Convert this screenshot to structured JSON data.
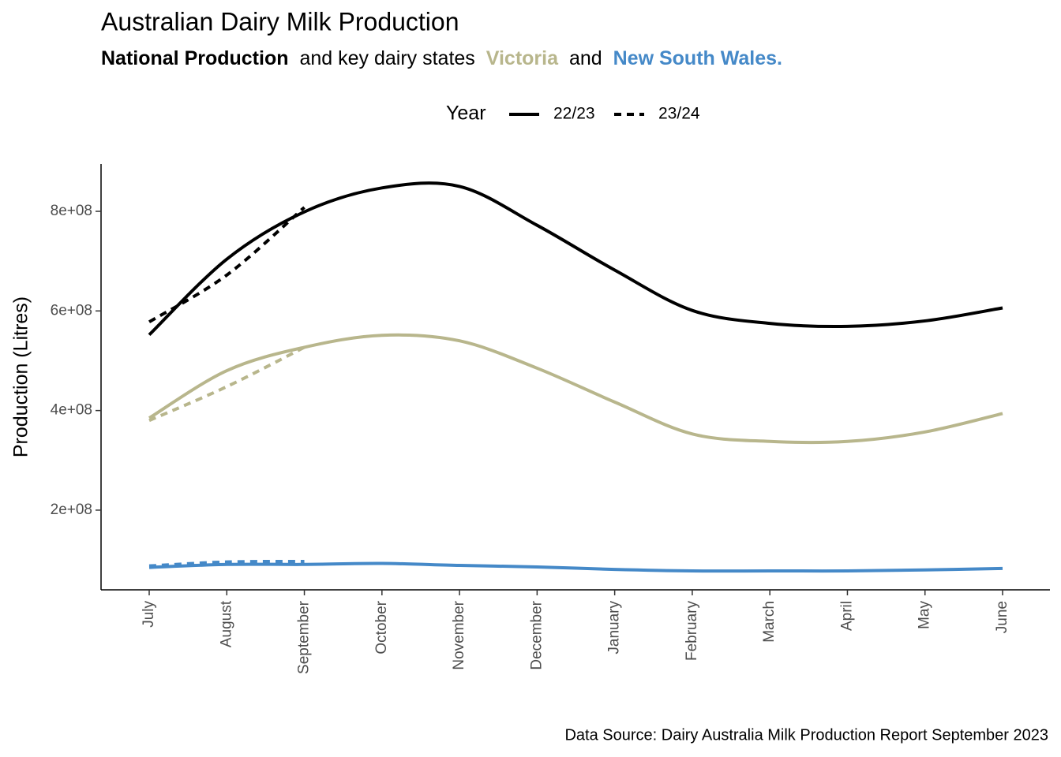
{
  "chart_data": {
    "type": "line",
    "title": "Australian Dairy Milk Production",
    "subtitle_connectors": [
      "and key dairy states",
      "and"
    ],
    "caption": "Data Source: Dairy Australia Milk Production Report September 2023",
    "ylabel": "Production (Litres)",
    "legend_title": "Year",
    "years": [
      "22/23",
      "23/24"
    ],
    "line_styles": [
      "solid",
      "dashed"
    ],
    "legend_position": "top",
    "grid": false,
    "categories": [
      "July",
      "August",
      "September",
      "October",
      "November",
      "December",
      "January",
      "February",
      "March",
      "April",
      "May",
      "June"
    ],
    "ylim": [
      40000000,
      895000000
    ],
    "yticks": [
      {
        "value": 200000000,
        "label": "2e+08"
      },
      {
        "value": 400000000,
        "label": "4e+08"
      },
      {
        "value": 600000000,
        "label": "6e+08"
      },
      {
        "value": 800000000,
        "label": "8e+08"
      }
    ],
    "series": [
      {
        "name": "National Production",
        "year": 0,
        "color": "#000000",
        "values": [
          552000000,
          704000000,
          799000000,
          847000000,
          850000000,
          772000000,
          682000000,
          601000000,
          575000000,
          569000000,
          580000000,
          606000000
        ]
      },
      {
        "name": "National Production",
        "year": 1,
        "color": "#000000",
        "values": [
          578000000,
          672000000,
          808000000,
          null,
          null,
          null,
          null,
          null,
          null,
          null,
          null,
          null
        ]
      },
      {
        "name": "Victoria",
        "year": 0,
        "color": "#b8b68c",
        "values": [
          385000000,
          480000000,
          527000000,
          551000000,
          540000000,
          485000000,
          417000000,
          353000000,
          338000000,
          338000000,
          357000000,
          394000000
        ]
      },
      {
        "name": "Victoria",
        "year": 1,
        "color": "#b8b68c",
        "values": [
          380000000,
          448000000,
          527000000,
          null,
          null,
          null,
          null,
          null,
          null,
          null,
          null,
          null
        ]
      },
      {
        "name": "New South Wales.",
        "year": 0,
        "color": "#4589c8",
        "values": [
          85000000,
          91000000,
          91000000,
          93000000,
          89000000,
          86000000,
          81000000,
          78000000,
          78000000,
          78000000,
          80000000,
          83000000
        ]
      },
      {
        "name": "New South Wales.",
        "year": 1,
        "color": "#4589c8",
        "values": [
          88000000,
          96000000,
          97000000,
          null,
          null,
          null,
          null,
          null,
          null,
          null,
          null,
          null
        ]
      }
    ]
  }
}
